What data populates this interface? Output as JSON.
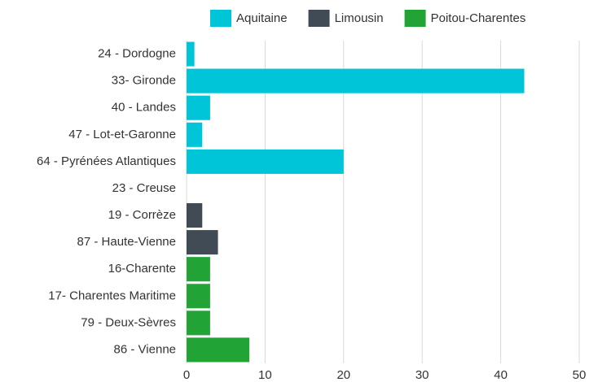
{
  "chart_data": {
    "type": "bar",
    "orientation": "horizontal",
    "categories": [
      "24 - Dordogne",
      "33- Gironde",
      "40 - Landes",
      "47 - Lot-et-Garonne",
      "64 - Pyrénées Atlantiques",
      "23 - Creuse",
      "19 - Corrèze",
      "87 - Haute-Vienne",
      "16-Charente",
      "17- Charentes Maritime",
      "79 - Deux-Sèvres",
      "86 - Vienne"
    ],
    "series": [
      {
        "name": "Aquitaine",
        "color": "#00c5d8",
        "values": [
          1,
          43,
          3,
          2,
          20,
          null,
          null,
          null,
          null,
          null,
          null,
          null
        ]
      },
      {
        "name": "Limousin",
        "color": "#414b55",
        "values": [
          null,
          null,
          null,
          null,
          null,
          0,
          2,
          4,
          null,
          null,
          null,
          null
        ]
      },
      {
        "name": "Poitou-Charentes",
        "color": "#22a336",
        "values": [
          null,
          null,
          null,
          null,
          null,
          null,
          null,
          null,
          3,
          3,
          3,
          8
        ]
      }
    ],
    "xlim": [
      0,
      50
    ],
    "xticks": [
      0,
      10,
      20,
      30,
      40,
      50
    ],
    "grid": true,
    "legend": "top"
  }
}
